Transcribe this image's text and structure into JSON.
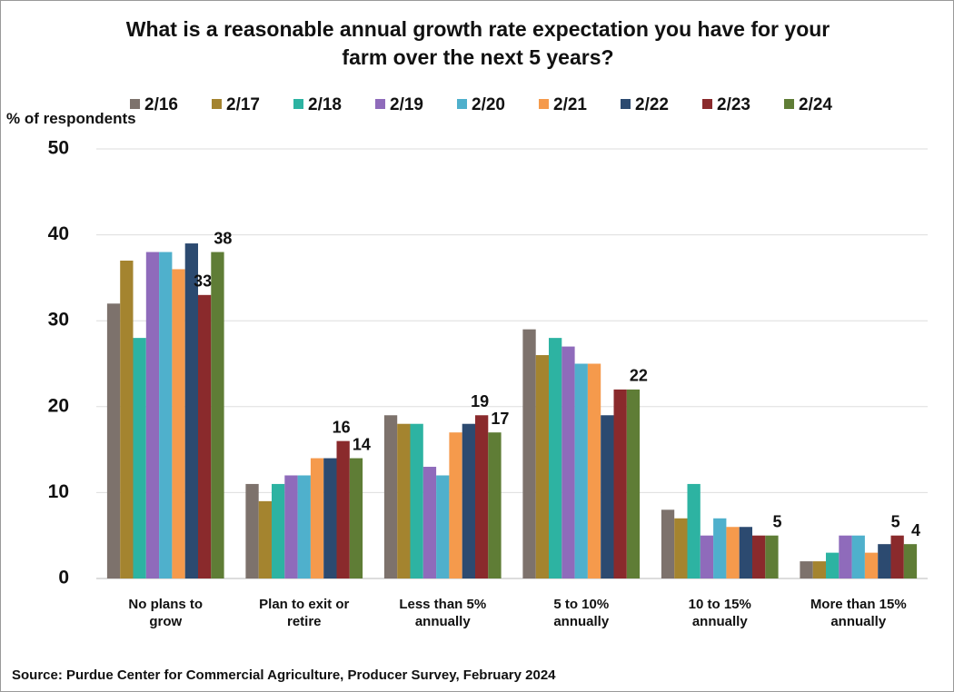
{
  "chart_data": {
    "type": "bar",
    "title": "What is a reasonable annual growth rate expectation you have for your farm over the next 5 years?",
    "y_axis_label": "% of respondents",
    "source": "Source: Purdue Center for Commercial Agriculture, Producer Survey, February 2024",
    "categories": [
      "No plans to grow",
      "Plan to exit or retire",
      "Less than 5% annually",
      "5 to 10% annually",
      "10 to 15% annually",
      "More than 15% annually"
    ],
    "series": [
      {
        "name": "2/16",
        "color": "#7d726c",
        "values": [
          32,
          11,
          19,
          29,
          8,
          2
        ]
      },
      {
        "name": "2/17",
        "color": "#a4842f",
        "values": [
          37,
          9,
          18,
          26,
          7,
          2
        ]
      },
      {
        "name": "2/18",
        "color": "#2db3a2",
        "values": [
          28,
          11,
          18,
          28,
          11,
          3
        ]
      },
      {
        "name": "2/19",
        "color": "#8f6bbb",
        "values": [
          38,
          12,
          13,
          27,
          5,
          5
        ]
      },
      {
        "name": "2/20",
        "color": "#4fb0cc",
        "values": [
          38,
          12,
          12,
          25,
          7,
          5
        ]
      },
      {
        "name": "2/21",
        "color": "#f59a4c",
        "values": [
          36,
          14,
          17,
          25,
          6,
          3
        ]
      },
      {
        "name": "2/22",
        "color": "#2c4a70",
        "values": [
          39,
          14,
          18,
          19,
          6,
          4
        ]
      },
      {
        "name": "2/23",
        "color": "#8a2a2c",
        "values": [
          33,
          16,
          19,
          22,
          5,
          5
        ],
        "value_labels": [
          33,
          16,
          19,
          null,
          null,
          5
        ]
      },
      {
        "name": "2/24",
        "color": "#5f7d36",
        "values": [
          38,
          14,
          17,
          22,
          5,
          4
        ],
        "value_labels": [
          38,
          14,
          17,
          22,
          5,
          4
        ]
      }
    ],
    "ylim": [
      0,
      50
    ],
    "yticks": [
      0,
      10,
      20,
      30,
      40,
      50
    ],
    "grid": true
  }
}
